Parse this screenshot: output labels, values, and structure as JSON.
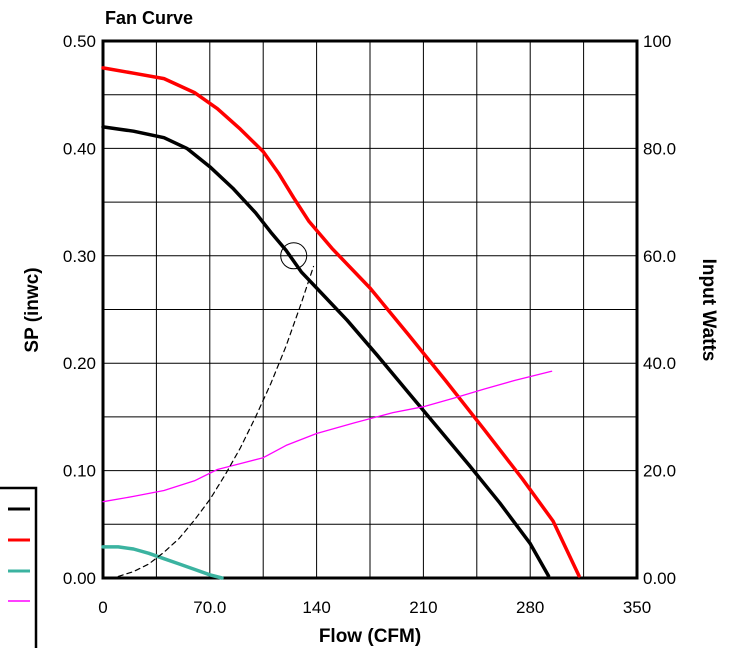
{
  "chart_data": {
    "type": "line",
    "title": "Fan Curve",
    "xlabel": "Flow (CFM)",
    "ylabel": "SP (inwc)",
    "y2label": "Input Watts",
    "xlim": [
      0,
      350
    ],
    "ylim": [
      0,
      0.5
    ],
    "y2lim": [
      0,
      100
    ],
    "grid": true,
    "x_ticks": [
      "0",
      "70.0",
      "140",
      "210",
      "280",
      "350"
    ],
    "y_ticks": [
      "0.00",
      "0.10",
      "0.20",
      "0.30",
      "0.40",
      "0.50"
    ],
    "y2_ticks": [
      "0.00",
      "20.0",
      "40.0",
      "60.0",
      "80.0",
      "100"
    ],
    "x_tick_values": [
      0,
      70,
      140,
      210,
      280,
      350
    ],
    "y_tick_values": [
      0,
      0.1,
      0.2,
      0.3,
      0.4,
      0.5
    ],
    "y2_tick_values": [
      0,
      20,
      40,
      60,
      80,
      100
    ],
    "x_gridlines": [
      0,
      35,
      70,
      105,
      140,
      175,
      210,
      245,
      280,
      315,
      350
    ],
    "y_gridlines": [
      0,
      0.05,
      0.1,
      0.15,
      0.2,
      0.25,
      0.3,
      0.35,
      0.4,
      0.45,
      0.5
    ],
    "series": [
      {
        "color": "#000000",
        "axis": "left",
        "style": "solid",
        "x": [
          0,
          20,
          40,
          55,
          70,
          85,
          100,
          110,
          120,
          130,
          140,
          160,
          180,
          200,
          220,
          240,
          260,
          280,
          292
        ],
        "y": [
          0.42,
          0.416,
          0.41,
          0.4,
          0.383,
          0.363,
          0.34,
          0.322,
          0.305,
          0.285,
          0.27,
          0.24,
          0.207,
          0.173,
          0.139,
          0.105,
          0.07,
          0.032,
          0.002
        ]
      },
      {
        "color": "#ff0000",
        "axis": "left",
        "style": "solid",
        "x": [
          0,
          20,
          40,
          60,
          75,
          90,
          105,
          115,
          125,
          135,
          150,
          175,
          200,
          225,
          250,
          275,
          295,
          312
        ],
        "y": [
          0.475,
          0.47,
          0.465,
          0.452,
          0.437,
          0.418,
          0.397,
          0.377,
          0.354,
          0.332,
          0.307,
          0.27,
          0.227,
          0.183,
          0.138,
          0.092,
          0.053,
          0.002
        ]
      },
      {
        "color": "#3bb3a0",
        "axis": "left",
        "style": "solid",
        "x": [
          0,
          10,
          20,
          30,
          40,
          50,
          60,
          70,
          78
        ],
        "y": [
          0.029,
          0.029,
          0.027,
          0.023,
          0.018,
          0.013,
          0.008,
          0.003,
          0.0
        ]
      },
      {
        "color": "#ff00ff",
        "axis": "right",
        "style": "solid",
        "x": [
          0,
          20,
          40,
          60,
          75,
          90,
          105,
          120,
          140,
          165,
          190,
          210,
          230,
          250,
          270,
          294
        ],
        "y": [
          14.2,
          15.2,
          16.3,
          18.1,
          20.2,
          21.3,
          22.4,
          24.7,
          26.9,
          28.9,
          30.8,
          31.9,
          33.5,
          35.2,
          36.8,
          38.5
        ]
      },
      {
        "color": "#000000",
        "axis": "left",
        "style": "dashed",
        "x": [
          10,
          20,
          30,
          40,
          50,
          60,
          70,
          80,
          90,
          100,
          110,
          120,
          125,
          130,
          138
        ],
        "y": [
          0.0015,
          0.006,
          0.013,
          0.024,
          0.037,
          0.054,
          0.073,
          0.096,
          0.121,
          0.15,
          0.181,
          0.216,
          0.236,
          0.256,
          0.29
        ]
      }
    ],
    "operating_point": {
      "x": 125,
      "y": 0.3
    }
  }
}
